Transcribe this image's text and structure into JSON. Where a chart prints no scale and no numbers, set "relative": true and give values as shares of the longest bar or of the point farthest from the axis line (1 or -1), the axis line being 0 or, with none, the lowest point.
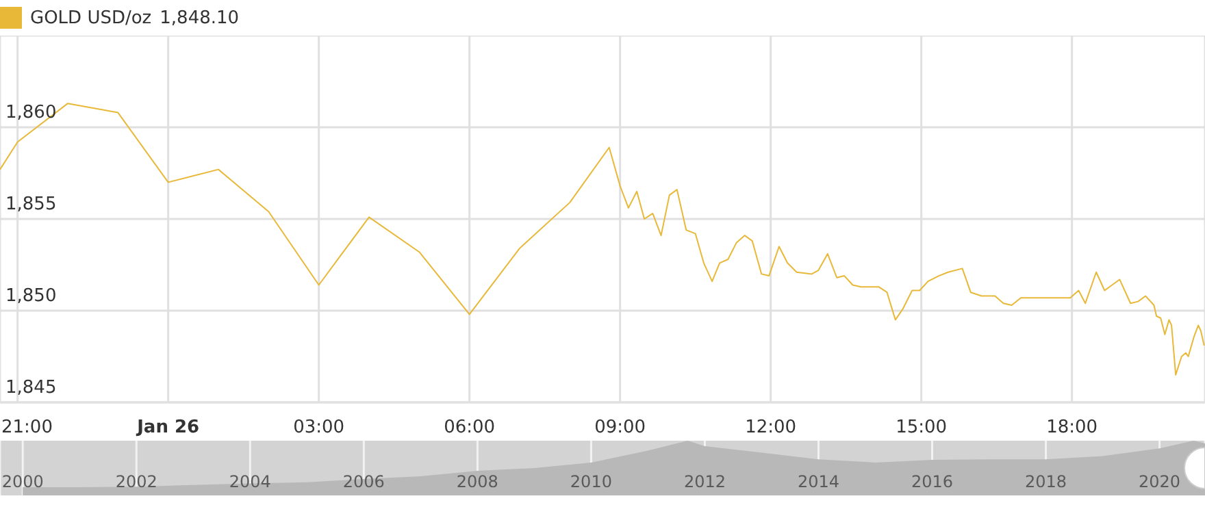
{
  "chart_data": [
    {
      "type": "line",
      "legend": "top left",
      "grid": true,
      "marker": "none",
      "line_style": "solid",
      "annotations": [
        "1,848.10"
      ],
      "xlim": [
        "--01-25T20:39",
        "--01-26T20:39"
      ],
      "xticks": [
        {
          "value": "--01-25T21:00",
          "label": "21:00"
        },
        {
          "value": "--01-26T00:00",
          "label": "Jan 26"
        },
        {
          "value": "--01-26T03:00",
          "label": "03:00"
        },
        {
          "value": "--01-26T06:00",
          "label": "06:00"
        },
        {
          "value": "--01-26T09:00",
          "label": "09:00"
        },
        {
          "value": "--01-26T12:00",
          "label": "12:00"
        },
        {
          "value": "--01-26T15:00",
          "label": "15:00"
        },
        {
          "value": "--01-26T18:00",
          "label": "18:00"
        }
      ],
      "ylim": [
        1845,
        1865
      ],
      "yticks": [
        {
          "value": 1845,
          "label": "1,845"
        },
        {
          "value": 1850,
          "label": "1,850"
        },
        {
          "value": 1855,
          "label": "1,855"
        },
        {
          "value": 1860,
          "label": "1,860"
        }
      ],
      "series": [
        {
          "name": "GOLD USD/oz",
          "color": "#e8b838",
          "x": [
            "--01-25T20:39",
            "--01-25T21:00",
            "--01-25T22:00",
            "--01-25T23:00",
            "--01-26T00:00",
            "--01-26T01:00",
            "--01-26T02:00",
            "--01-26T03:00",
            "--01-26T04:00",
            "--01-26T05:00",
            "--01-26T06:00",
            "--01-26T07:00",
            "--01-26T08:00",
            "--01-26T08:47",
            "--01-26T09:00",
            "--01-26T09:10",
            "--01-26T09:20",
            "--01-26T09:29",
            "--01-26T09:39",
            "--01-26T09:49",
            "--01-26T09:59",
            "--01-26T10:08",
            "--01-26T10:19",
            "--01-26T10:30",
            "--01-26T10:40",
            "--01-26T10:50",
            "--01-26T10:59",
            "--01-26T11:09",
            "--01-26T11:19",
            "--01-26T11:29",
            "--01-26T11:38",
            "--01-26T11:49",
            "--01-26T11:58",
            "--01-26T12:10",
            "--01-26T12:20",
            "--01-26T12:31",
            "--01-26T12:49",
            "--01-26T12:57",
            "--01-26T13:08",
            "--01-26T13:19",
            "--01-26T13:28",
            "--01-26T13:38",
            "--01-26T13:48",
            "--01-26T14:09",
            "--01-26T14:19",
            "--01-26T14:29",
            "--01-26T14:38",
            "--01-26T14:49",
            "--01-26T14:58",
            "--01-26T15:08",
            "--01-26T15:21",
            "--01-26T15:32",
            "--01-26T15:49",
            "--01-26T15:59",
            "--01-26T16:12",
            "--01-26T16:28",
            "--01-26T16:38",
            "--01-26T16:48",
            "--01-26T16:59",
            "--01-26T17:34",
            "--01-26T17:58",
            "--01-26T18:08",
            "--01-26T18:16",
            "--01-26T18:29",
            "--01-26T18:39",
            "--01-26T18:57",
            "--01-26T19:10",
            "--01-26T19:19",
            "--01-26T19:28",
            "--01-26T19:38",
            "--01-26T19:41",
            "--01-26T19:46",
            "--01-26T19:51",
            "--01-26T19:56",
            "--01-26T19:59",
            "--01-26T20:04",
            "--01-26T20:11",
            "--01-26T20:16",
            "--01-26T20:19",
            "--01-26T20:26",
            "--01-26T20:31",
            "--01-26T20:34",
            "--01-26T20:38"
          ],
          "values": [
            1857.7,
            1859.2,
            1861.3,
            1860.8,
            1857,
            1857.7,
            1855.4,
            1851.4,
            1855.1,
            1853.2,
            1849.8,
            1853.4,
            1855.9,
            1858.9,
            1856.8,
            1855.6,
            1856.5,
            1855,
            1855.3,
            1854.1,
            1856.3,
            1856.6,
            1854.4,
            1854.2,
            1852.6,
            1851.6,
            1852.6,
            1852.8,
            1853.7,
            1854.1,
            1853.8,
            1852,
            1851.9,
            1853.5,
            1852.6,
            1852.1,
            1852,
            1852.2,
            1853.1,
            1851.8,
            1851.9,
            1851.4,
            1851.3,
            1851.3,
            1851,
            1849.5,
            1850.1,
            1851.1,
            1851.1,
            1851.6,
            1851.9,
            1852.1,
            1852.3,
            1851,
            1850.8,
            1850.8,
            1850.4,
            1850.3,
            1850.7,
            1850.7,
            1850.7,
            1851.1,
            1850.4,
            1852.1,
            1851.1,
            1851.7,
            1850.4,
            1850.5,
            1850.8,
            1850.3,
            1849.7,
            1849.6,
            1848.7,
            1849.5,
            1849.2,
            1846.5,
            1847.5,
            1847.7,
            1847.5,
            1848.6,
            1849.2,
            1848.9,
            1848.1
          ]
        }
      ]
    },
    {
      "type": "area",
      "relative": true,
      "grid": "x",
      "xlim": [
        1999.6,
        2020.8
      ],
      "xticks": [
        2000,
        2002,
        2004,
        2006,
        2008,
        2010,
        2012,
        2014,
        2016,
        2018,
        2020
      ],
      "series": [
        {
          "color": "#b8b8b8",
          "x": [
            2000,
            2001,
            2002,
            2003,
            2004,
            2005,
            2006,
            2007,
            2008,
            2009,
            2010,
            2011,
            2011.7,
            2012,
            2013,
            2014,
            2015,
            2016,
            2017,
            2018,
            2019,
            2020,
            2020.6,
            2020.8
          ],
          "values": [
            0.15,
            0.15,
            0.16,
            0.19,
            0.22,
            0.24,
            0.3,
            0.35,
            0.45,
            0.5,
            0.6,
            0.82,
            1,
            0.9,
            0.78,
            0.66,
            0.6,
            0.65,
            0.66,
            0.66,
            0.72,
            0.86,
            1,
            0.95
          ]
        }
      ]
    }
  ]
}
